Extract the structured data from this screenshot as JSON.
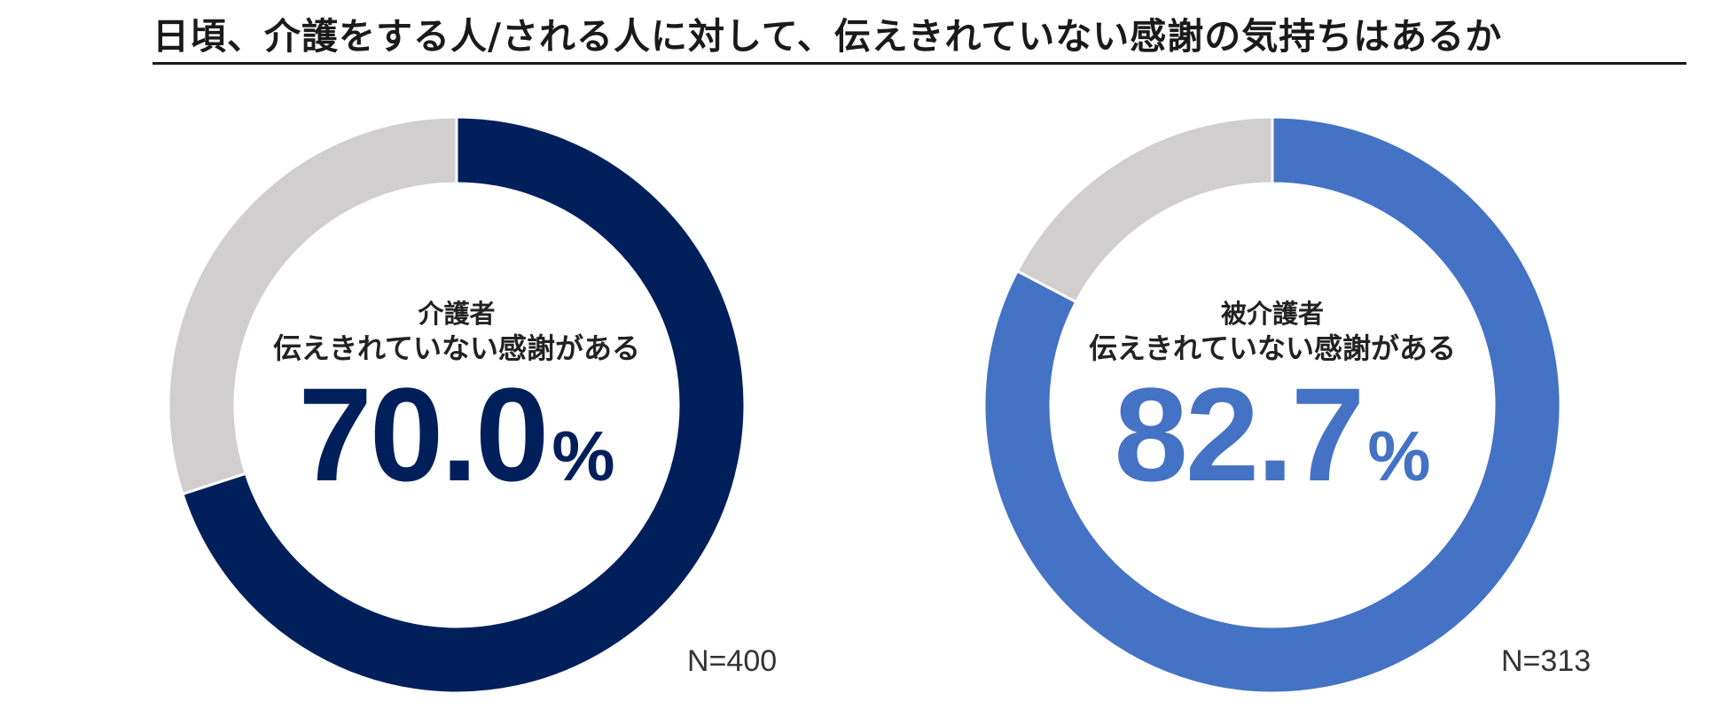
{
  "title": "日頃、介護をする人/される人に対して、伝えきれていない感謝の気持ちはあるか",
  "chart_data": [
    {
      "type": "pie",
      "title": "介護者",
      "subtitle": "伝えきれていない感謝がある",
      "value_display": "70.0",
      "unit": "%",
      "sample_size": "N=400",
      "values": [
        70.0,
        30.0
      ],
      "colors": [
        "#011f5b",
        "#d0cece"
      ]
    },
    {
      "type": "pie",
      "title": "被介護者",
      "subtitle": "伝えきれていない感謝がある",
      "value_display": "82.7",
      "unit": "%",
      "sample_size": "N=313",
      "values": [
        82.7,
        17.3
      ],
      "colors": [
        "#4472c4",
        "#d0cece"
      ]
    }
  ]
}
